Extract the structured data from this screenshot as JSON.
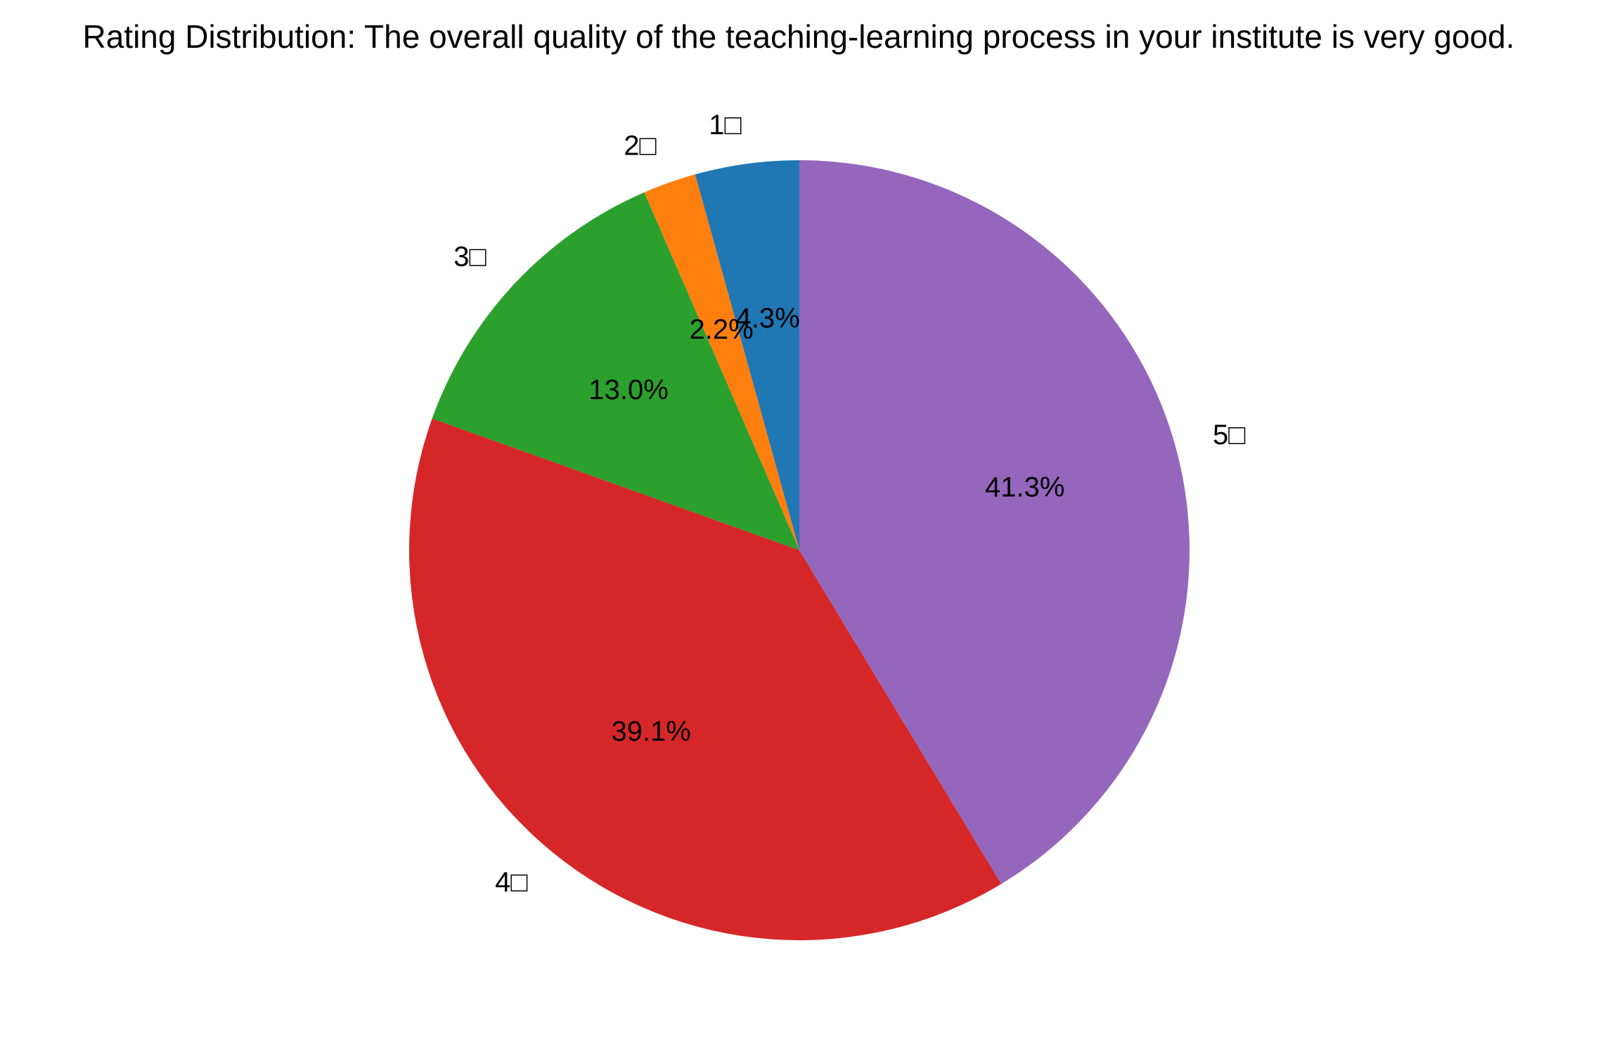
{
  "chart_data": {
    "type": "pie",
    "title": "Rating Distribution: The overall quality of the teaching-learning process in your institute is very good.",
    "start_angle_deg": 90,
    "direction": "counterclockwise",
    "slices": [
      {
        "label": "1□",
        "percent": 4.3,
        "percent_label": "4.3%",
        "color": "#1f77b4"
      },
      {
        "label": "2□",
        "percent": 2.2,
        "percent_label": "2.2%",
        "color": "#ff7f0e"
      },
      {
        "label": "3□",
        "percent": 13.0,
        "percent_label": "13.0%",
        "color": "#2ca02c"
      },
      {
        "label": "4□",
        "percent": 39.1,
        "percent_label": "39.1%",
        "color": "#d62728"
      },
      {
        "label": "5□",
        "percent": 41.3,
        "percent_label": "41.3%",
        "color": "#9467bd"
      }
    ]
  }
}
